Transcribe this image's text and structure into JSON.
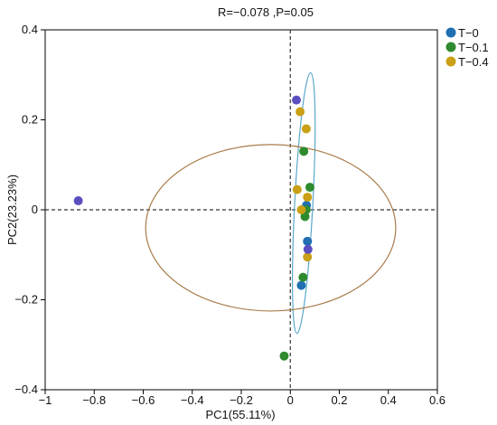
{
  "chart_data": {
    "type": "scatter",
    "title": "R=−0.078 ,P=0.05",
    "xlabel": "PC1(55.11%)",
    "ylabel": "PC2(23.23%)",
    "xlim": [
      -1.0,
      0.6
    ],
    "ylim": [
      -0.4,
      0.4
    ],
    "x_ticks": [
      -1,
      -0.8,
      -0.6,
      -0.4,
      -0.2,
      0,
      0.2,
      0.4,
      0.6
    ],
    "x_tick_labels": [
      "−1",
      "−0.8",
      "−0.6",
      "−0.4",
      "−0.2",
      "0",
      "0.2",
      "0.4",
      "0.6"
    ],
    "y_ticks": [
      -0.4,
      -0.2,
      0,
      0.2,
      0.4
    ],
    "y_tick_labels": [
      "−0.4",
      "−0.2",
      "0",
      "0.2",
      "0.4"
    ],
    "reference_lines": {
      "x": 0,
      "y": 0,
      "style": "dashed"
    },
    "grid": false,
    "legend_position": "top-right",
    "series": [
      {
        "name": "T−0",
        "color": "#1f6fb2",
        "points": [
          [
            0.066,
            0.01
          ],
          [
            0.07,
            -0.07
          ],
          [
            0.045,
            -0.168
          ]
        ],
        "ellipse": {
          "cx": 0.055,
          "cy": 0.015,
          "rx": 0.037,
          "ry": 0.29,
          "angle": 3,
          "color": "#5aa8cc"
        }
      },
      {
        "name": "T−0.1",
        "color": "#2e8b2e",
        "points": [
          [
            0.055,
            0.13
          ],
          [
            0.08,
            0.05
          ],
          [
            0.065,
            0.0
          ],
          [
            0.06,
            -0.015
          ],
          [
            0.052,
            -0.15
          ],
          [
            -0.025,
            -0.325
          ]
        ]
      },
      {
        "name": "T−0.4",
        "color": "#c9a016",
        "points": [
          [
            0.04,
            0.218
          ],
          [
            0.065,
            0.18
          ],
          [
            0.028,
            0.045
          ],
          [
            0.07,
            0.028
          ],
          [
            0.045,
            0.0
          ],
          [
            0.07,
            -0.105
          ]
        ],
        "ellipse": {
          "cx": -0.08,
          "cy": -0.04,
          "rx": 0.51,
          "ry": 0.185,
          "angle": 0,
          "color": "#a97c4a"
        }
      },
      {
        "name": "",
        "color": "#5b4fc0",
        "legend": false,
        "points": [
          [
            -0.865,
            0.02
          ],
          [
            0.025,
            0.244
          ],
          [
            0.072,
            -0.088
          ]
        ]
      }
    ]
  }
}
